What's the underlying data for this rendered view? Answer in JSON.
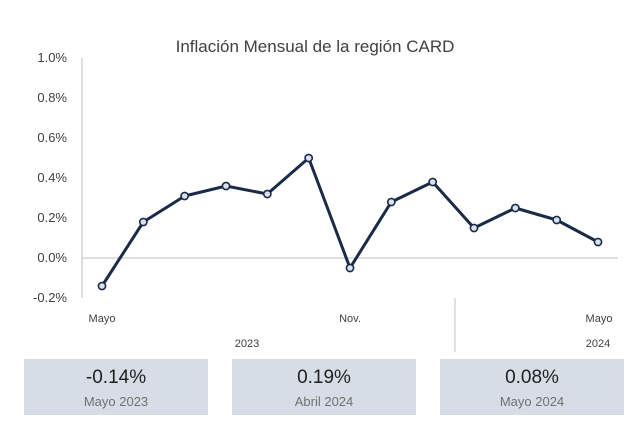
{
  "chart_data": {
    "type": "line",
    "title": "Inflación Mensual de la región CARD",
    "xlabel": "",
    "ylabel": "",
    "ylim": [
      -0.2,
      1.0
    ],
    "y_ticks": [
      "1.0%",
      "0.8%",
      "0.6%",
      "0.4%",
      "0.2%",
      "0.0%",
      "-0.2%"
    ],
    "x_labels": [
      "Mayo",
      "Nov.",
      "Mayo"
    ],
    "year_labels": [
      "2023",
      "2024"
    ],
    "grid": false,
    "series": [
      {
        "values": [
          -0.14,
          0.18,
          0.31,
          0.36,
          0.32,
          0.5,
          -0.05,
          0.28,
          0.38,
          0.15,
          0.25,
          0.19,
          0.08
        ]
      }
    ],
    "line_color": "#1b2a47",
    "marker_fill": "#d9e1ef"
  },
  "cards": [
    {
      "value": "-0.14%",
      "label": "Mayo 2023"
    },
    {
      "value": "0.19%",
      "label": "Abril 2024"
    },
    {
      "value": "0.08%",
      "label": "Mayo 2024"
    }
  ],
  "colors": {
    "card_bg": "#d7dde6"
  }
}
